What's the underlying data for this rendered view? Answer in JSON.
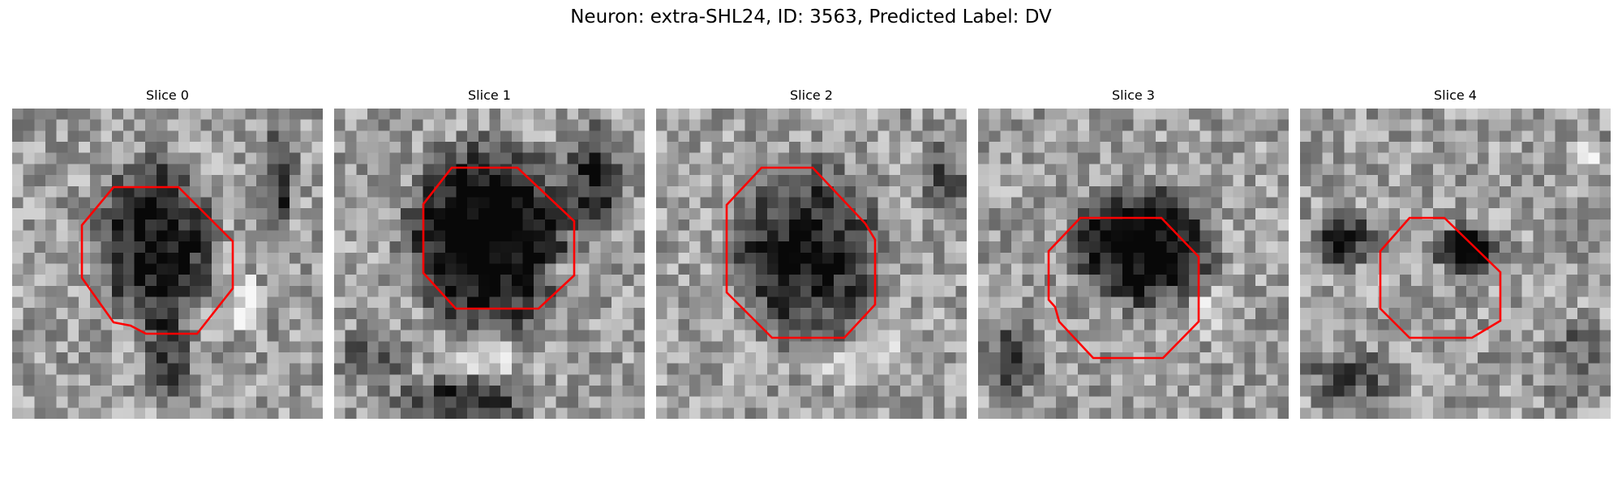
{
  "figure": {
    "title": "Neuron: extra-SHL24, ID: 3563, Predicted Label: DV"
  },
  "panels": [
    {
      "title": "Slice 0",
      "contour_color": "#ff0000"
    },
    {
      "title": "Slice 1",
      "contour_color": "#ff0000"
    },
    {
      "title": "Slice 2",
      "contour_color": "#ff0000"
    },
    {
      "title": "Slice 3",
      "contour_color": "#ff0000"
    },
    {
      "title": "Slice 4",
      "contour_color": "#ff0000"
    }
  ],
  "colormap": "gray"
}
